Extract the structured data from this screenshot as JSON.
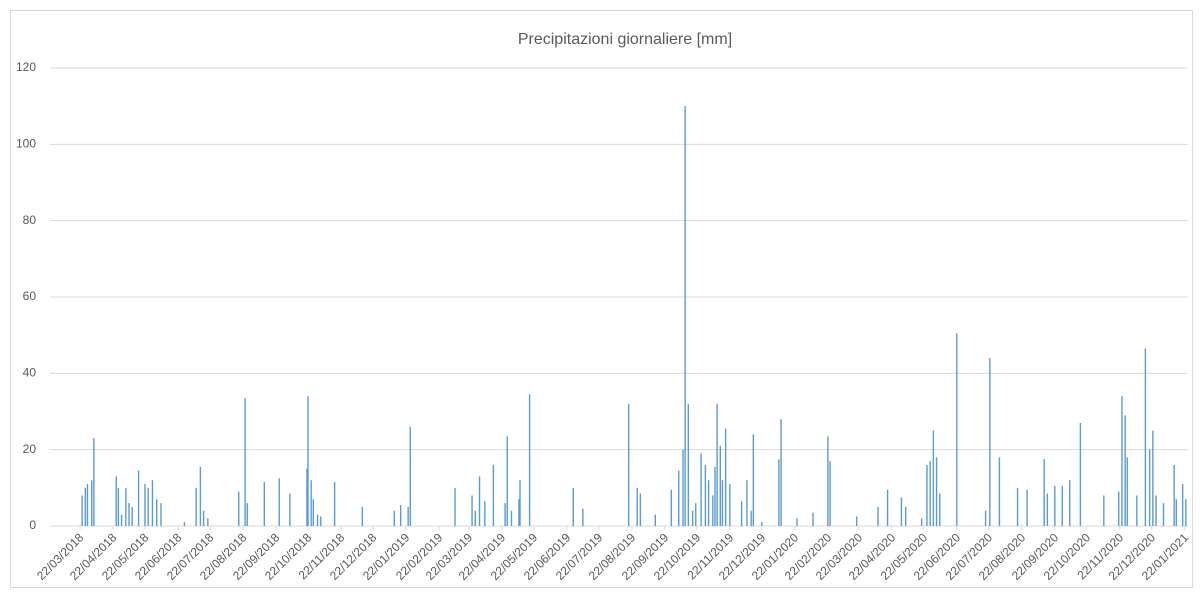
{
  "chart_data": {
    "type": "bar",
    "title": "Precipitazioni giornaliere [mm]",
    "color": "#5b9bd5",
    "grid": true,
    "x": [
      "24/03/2018",
      "27/03/2018",
      "29/03/2018",
      "02/04/2018",
      "04/04/2018",
      "25/04/2018",
      "27/04/2018",
      "30/04/2018",
      "04/05/2018",
      "07/05/2018",
      "10/05/2018",
      "16/05/2018",
      "22/05/2018",
      "25/05/2018",
      "29/05/2018",
      "02/06/2018",
      "06/06/2018",
      "28/06/2018",
      "09/07/2018",
      "13/07/2018",
      "16/07/2018",
      "20/07/2018",
      "18/08/2018",
      "24/08/2018",
      "26/08/2018",
      "11/09/2018",
      "25/09/2018",
      "05/10/2018",
      "21/10/2018",
      "22/10/2018",
      "25/10/2018",
      "27/10/2018",
      "31/10/2018",
      "03/11/2018",
      "16/11/2018",
      "12/12/2018",
      "11/01/2019",
      "17/01/2019",
      "24/01/2019",
      "26/01/2019",
      "09/03/2019",
      "25/03/2019",
      "28/03/2019",
      "01/04/2019",
      "06/04/2019",
      "14/04/2019",
      "25/04/2019",
      "27/04/2019",
      "01/05/2019",
      "08/05/2019",
      "09/05/2019",
      "18/05/2019",
      "28/06/2019",
      "07/07/2019",
      "19/08/2019",
      "27/08/2019",
      "30/08/2019",
      "13/09/2019",
      "28/09/2019",
      "05/10/2019",
      "09/10/2019",
      "11/10/2019",
      "14/10/2019",
      "18/10/2019",
      "21/10/2019",
      "26/10/2019",
      "30/10/2019",
      "02/11/2019",
      "06/11/2019",
      "08/11/2019",
      "10/11/2019",
      "13/11/2019",
      "15/11/2019",
      "18/11/2019",
      "22/11/2019",
      "03/12/2019",
      "08/12/2019",
      "12/12/2019",
      "14/12/2019",
      "22/12/2019",
      "07/01/2020",
      "09/01/2020",
      "24/01/2020",
      "08/02/2020",
      "22/02/2020",
      "24/02/2020",
      "20/03/2020",
      "09/04/2020",
      "18/04/2020",
      "01/05/2020",
      "05/05/2020",
      "20/05/2020",
      "25/05/2020",
      "28/05/2020",
      "31/05/2020",
      "03/06/2020",
      "06/06/2020",
      "22/06/2020",
      "19/07/2020",
      "23/07/2020",
      "01/08/2020",
      "18/08/2020",
      "27/08/2020",
      "12/09/2020",
      "15/09/2020",
      "22/09/2020",
      "29/09/2020",
      "06/10/2020",
      "16/10/2020",
      "07/11/2020",
      "21/11/2020",
      "24/11/2020",
      "27/11/2020",
      "29/11/2020",
      "08/12/2020",
      "16/12/2020",
      "20/12/2020",
      "23/12/2020",
      "26/12/2020",
      "02/01/2021",
      "12/01/2021",
      "14/01/2021",
      "20/01/2021",
      "23/01/2021"
    ],
    "values": [
      8,
      10,
      11,
      12,
      23,
      13,
      10,
      3,
      10,
      6,
      5,
      14.5,
      11,
      10,
      12,
      7,
      6,
      1,
      10,
      15.5,
      4,
      2,
      9,
      33.5,
      6,
      11.5,
      12.5,
      8.5,
      15,
      34,
      12,
      7,
      3,
      2.5,
      11.5,
      5,
      4,
      5.5,
      5,
      26,
      10,
      8,
      4,
      13,
      6.5,
      16,
      6,
      23.5,
      4,
      7,
      12,
      34.5,
      10,
      4.5,
      32,
      10,
      8.5,
      3,
      9.5,
      14.5,
      20,
      110,
      32,
      4,
      6,
      19,
      16,
      12,
      8,
      15.5,
      32,
      21,
      12,
      25.5,
      11,
      6.5,
      12,
      4,
      24,
      1,
      17.5,
      28,
      2,
      3.5,
      23.5,
      17,
      2.5,
      5,
      9.5,
      7.5,
      5,
      2,
      16,
      17,
      25,
      18,
      8.5,
      50.5,
      4,
      44,
      18,
      10,
      9.5,
      17.5,
      8.5,
      10.5,
      10.5,
      12,
      27,
      8,
      9,
      34,
      29,
      18,
      8,
      46.5,
      20,
      25,
      8,
      6,
      16,
      7,
      11,
      7
    ],
    "xlim": [
      "22/03/2018",
      "25/01/2021"
    ],
    "xticks": [
      "22/03/2018",
      "22/04/2018",
      "22/05/2018",
      "22/06/2018",
      "22/07/2018",
      "22/08/2018",
      "22/09/2018",
      "22/10/2018",
      "22/11/2018",
      "22/12/2018",
      "22/01/2019",
      "22/02/2019",
      "22/03/2019",
      "22/04/2019",
      "22/05/2019",
      "22/06/2019",
      "22/07/2019",
      "22/08/2019",
      "22/09/2019",
      "22/10/2019",
      "22/11/2019",
      "22/12/2019",
      "22/01/2020",
      "22/02/2020",
      "22/03/2020",
      "22/04/2020",
      "22/05/2020",
      "22/06/2020",
      "22/07/2020",
      "22/08/2020",
      "22/09/2020",
      "22/10/2020",
      "22/11/2020",
      "22/12/2020",
      "22/01/2021"
    ],
    "ylim": [
      0,
      120
    ],
    "yticks": [
      0,
      20,
      40,
      60,
      80,
      100,
      120
    ]
  }
}
